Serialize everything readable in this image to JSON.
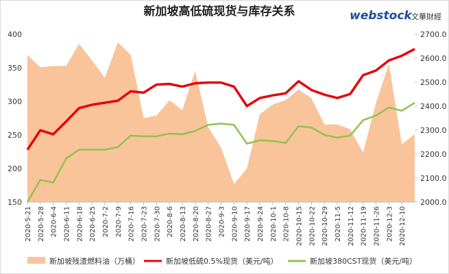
{
  "logo": {
    "name": "webstock",
    "cn": "文華財經"
  },
  "chart_data": {
    "type": "line",
    "title": "新加坡高低硫现货与库存关系",
    "categories": [
      "2020-5-21",
      "2020-5-28",
      "2020-6-4",
      "2020-6-11",
      "2020-6-18",
      "2020-6-25",
      "2020-7-2",
      "2020-7-9",
      "2020-7-16",
      "2020-7-23",
      "2020-7-30",
      "2020-8-6",
      "2020-8-13",
      "2020-8-20",
      "2020-8-27",
      "2020-9-3",
      "2020-9-10",
      "2020-9-17",
      "2020-9-24",
      "2020-10-1",
      "2020-10-8",
      "2020-10-15",
      "2020-10-22",
      "2020-10-29",
      "2020-11-5",
      "2020-11-12",
      "2020-11-19",
      "2020-11-26",
      "2020-12-3",
      "2020-12-10",
      null
    ],
    "series": [
      {
        "name": "新加坡残渣燃料油（万桶）",
        "color": "#f9c49a",
        "type": "area",
        "axis": "y2",
        "values": [
          2614,
          2562,
          2568,
          2568,
          2660,
          2591,
          2519,
          2666,
          2614,
          2350,
          2361,
          2425,
          2384,
          2548,
          2313,
          2227,
          2075,
          2140,
          2367,
          2407,
          2425,
          2470,
          2433,
          2324,
          2324,
          2304,
          2206,
          2413,
          2577,
          2241,
          2284
        ]
      },
      {
        "name": "新加坡低硫0.5%现货（美元/吨）",
        "color": "#e8000b",
        "type": "line",
        "values": [
          228,
          257,
          251,
          270,
          290,
          295,
          298,
          301,
          315,
          313,
          325,
          326,
          322,
          327,
          328,
          328,
          322,
          293,
          305,
          309,
          312,
          330,
          317,
          310,
          305,
          311,
          339,
          346,
          361,
          368,
          378
        ]
      },
      {
        "name": "新加坡380CST现货（美元/吨）",
        "color": "#92c050",
        "type": "line",
        "values": [
          150,
          183,
          179,
          215,
          228,
          228,
          228,
          232,
          249,
          248,
          248,
          252,
          251,
          256,
          265,
          267,
          265,
          237,
          242,
          241,
          238,
          263,
          261,
          250,
          246,
          249,
          272,
          279,
          291,
          286,
          298
        ]
      }
    ],
    "ylim": [
      150,
      400
    ],
    "yticks": [
      150,
      200,
      250,
      300,
      350,
      400
    ],
    "y2lim": [
      2000,
      2700
    ],
    "y2ticks": [
      {
        "value": 2000,
        "label": "2000.0"
      },
      {
        "value": 2100,
        "label": "2100.0"
      },
      {
        "value": 2200,
        "label": "2200.0"
      },
      {
        "value": 2300,
        "label": "2300.0"
      },
      {
        "value": 2400,
        "label": "2400.0"
      },
      {
        "value": 2500,
        "label": "2500.0"
      },
      {
        "value": 2600,
        "label": "2600.0"
      },
      {
        "value": 2700,
        "label": "2700.0"
      }
    ]
  }
}
